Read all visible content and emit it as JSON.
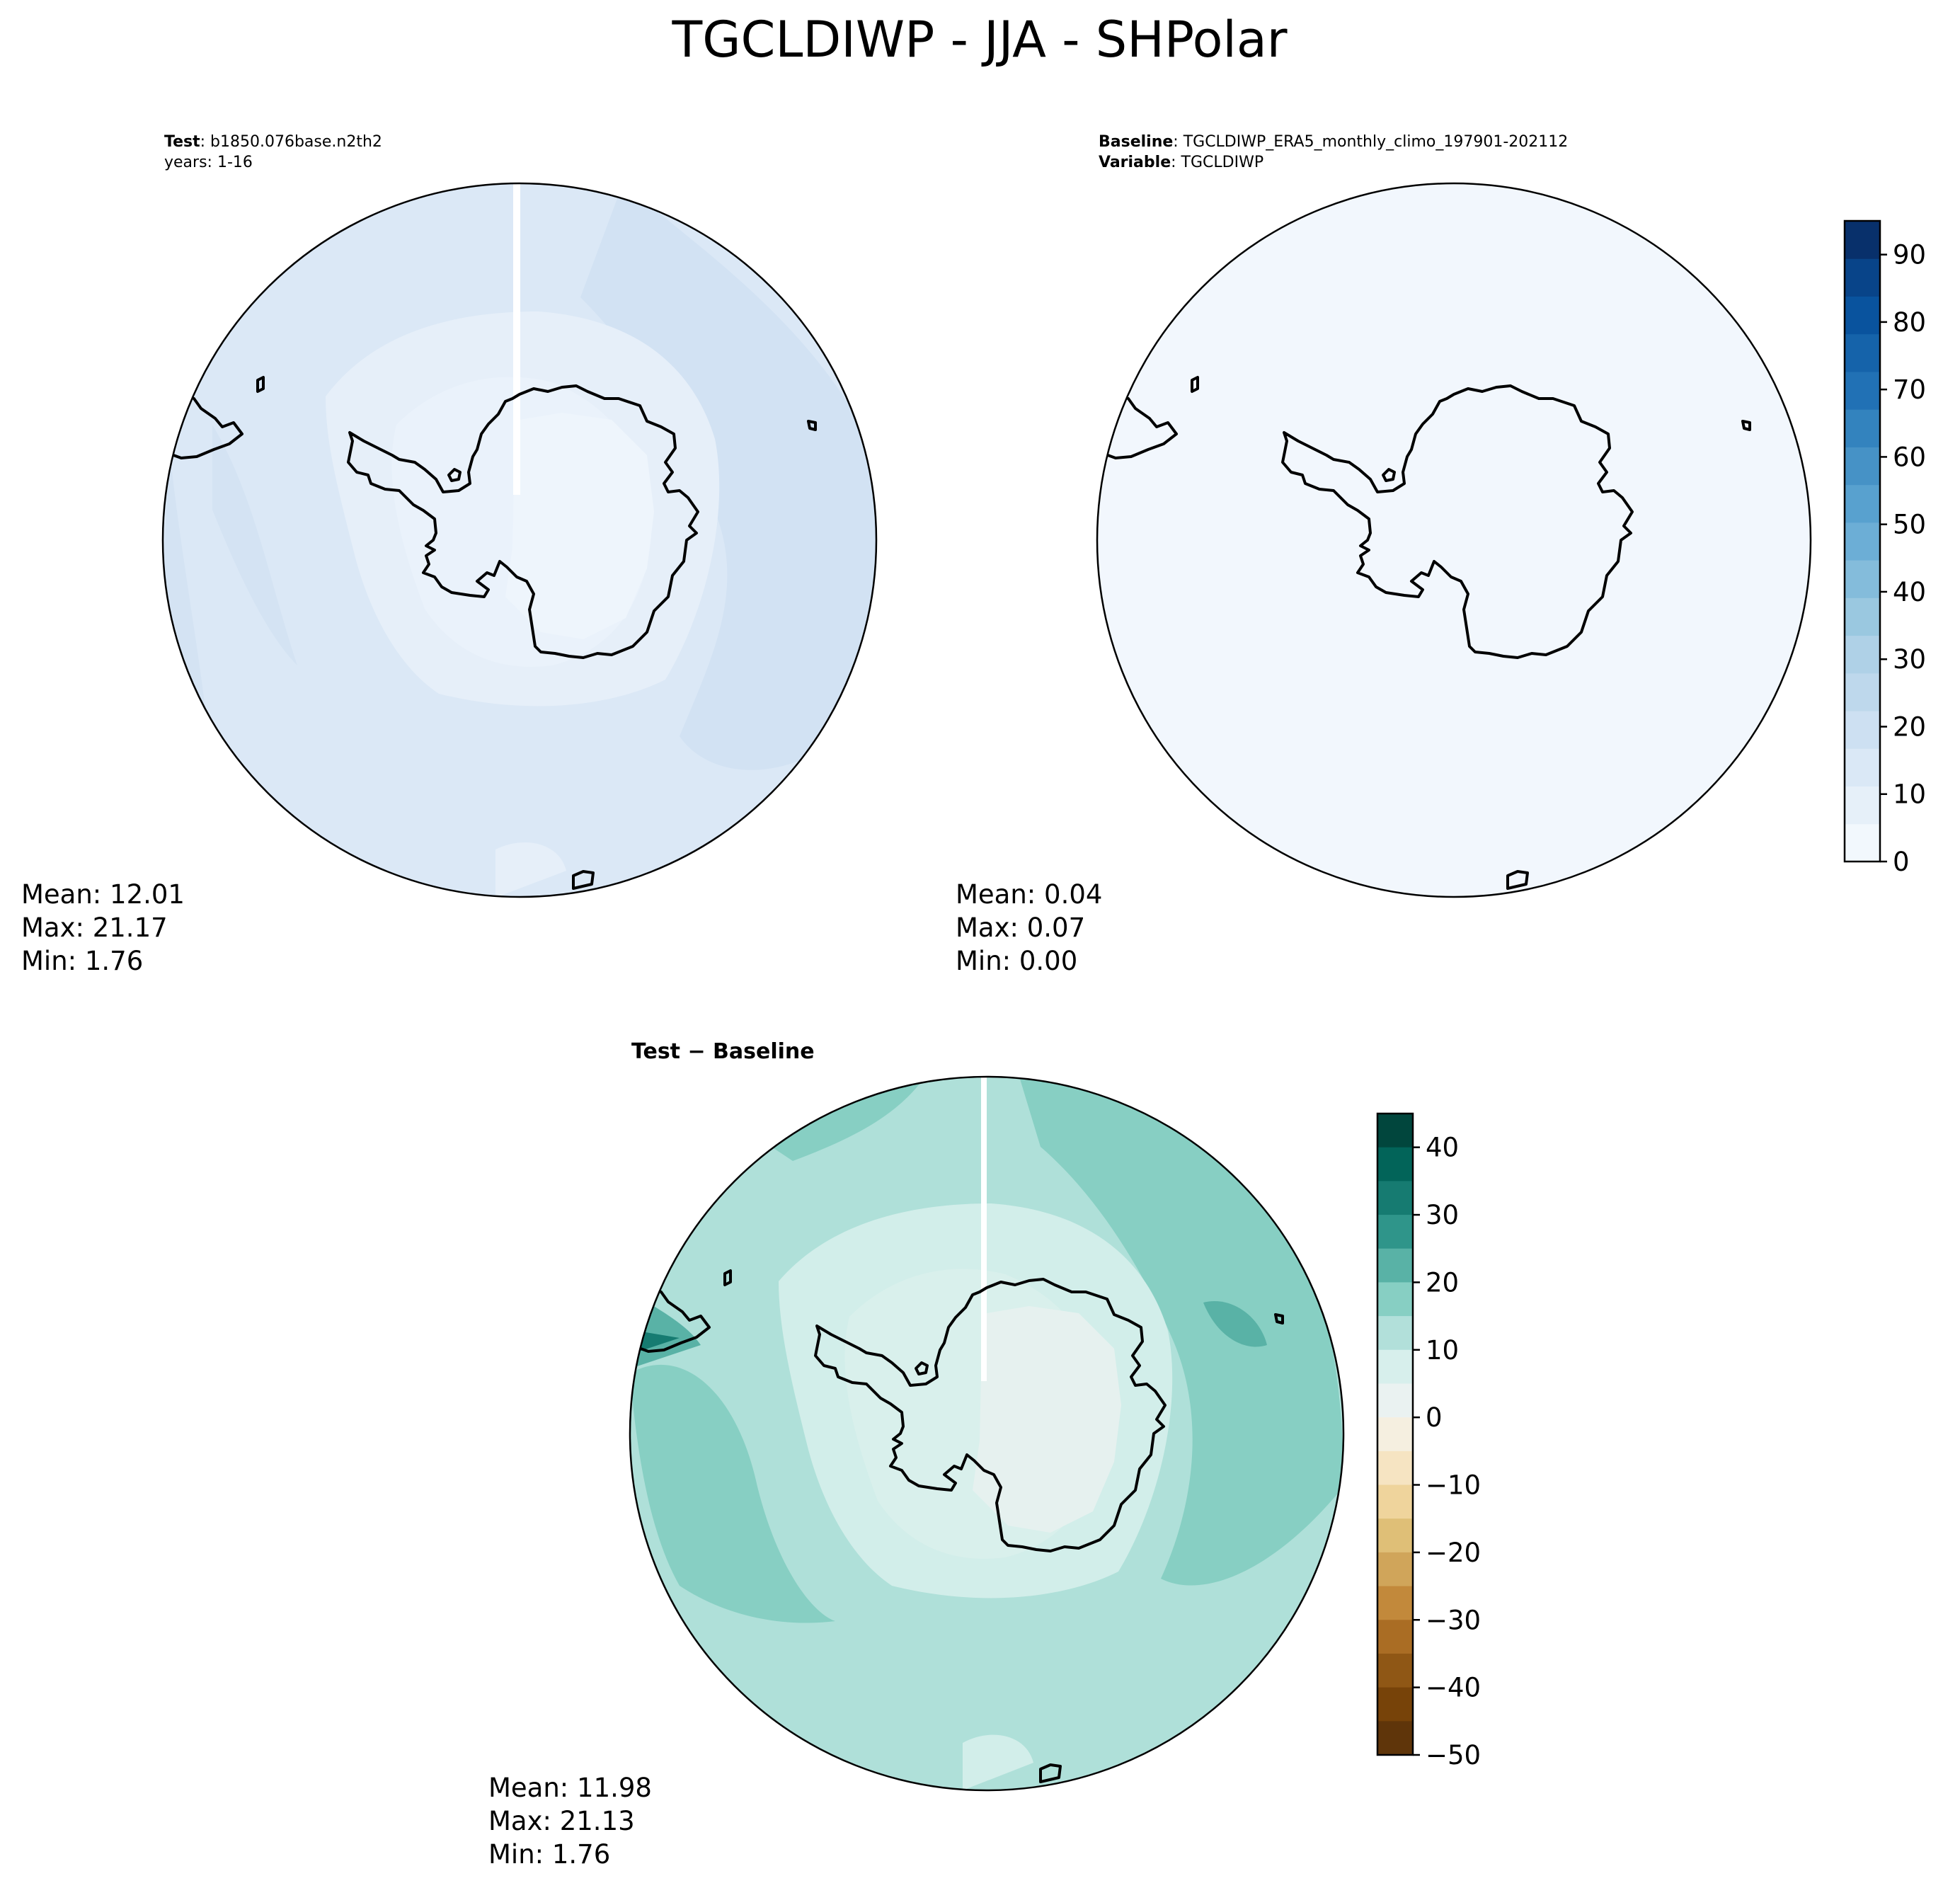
{
  "title": "TGCLDIWP - JJA - SHPolar",
  "panels": {
    "test": {
      "header_bold": "Test",
      "header_rest": ": b1850.076base.n2th2",
      "header_line2": "years: 1-16",
      "stats": {
        "mean": "Mean: 12.01",
        "max": "Max: 21.17",
        "min": "Min:  1.76"
      }
    },
    "baseline": {
      "header_bold": "Baseline",
      "header_rest": ": TGCLDIWP_ERA5_monthly_climo_197901-202112",
      "header_line2_bold": "Variable",
      "header_line2_rest": ": TGCLDIWP",
      "stats": {
        "mean": "Mean:  0.04",
        "max": "Max:  0.07",
        "min": "Min:  0.00"
      }
    },
    "diff": {
      "header": "Test − Baseline",
      "stats": {
        "mean": "Mean: 11.98",
        "max": "Max: 21.13",
        "min": "Min:  1.76"
      }
    }
  },
  "colorbars": {
    "main": {
      "ticks": [
        "0",
        "10",
        "20",
        "30",
        "40",
        "50",
        "60",
        "70",
        "80",
        "90"
      ],
      "colors": [
        "#f2f8fd",
        "#e6f0f9",
        "#dae8f6",
        "#cde0f2",
        "#bed8ec",
        "#afd1e7",
        "#9ac8e0",
        "#84bcdb",
        "#6caed6",
        "#58a1cf",
        "#4692c6",
        "#3383be",
        "#2171b5",
        "#1563aa",
        "#09539e",
        "#084489",
        "#08306b"
      ]
    },
    "diff": {
      "ticks": [
        "40",
        "30",
        "20",
        "10",
        "0",
        "−10",
        "−20",
        "−30",
        "−40",
        "−50"
      ],
      "colors": [
        "#01463d",
        "#026459",
        "#167b71",
        "#2f958a",
        "#59b2a6",
        "#87cfc3",
        "#b2e0da",
        "#d7efec",
        "#eaf2f1",
        "#f5efe0",
        "#f6e4c2",
        "#efd49c",
        "#dfbf77",
        "#d0a55a",
        "#c2893b",
        "#aa6d24",
        "#8f5715",
        "#774309",
        "#5f350a"
      ]
    }
  },
  "chart_data": [
    {
      "type": "heatmap",
      "subtype": "polar-stereographic-map",
      "panel": "test",
      "region": "South Polar",
      "colormap": "Blues",
      "value_range": [
        0,
        95
      ],
      "stats": {
        "mean": 12.01,
        "max": 21.17,
        "min": 1.76
      }
    },
    {
      "type": "heatmap",
      "subtype": "polar-stereographic-map",
      "panel": "baseline",
      "region": "South Polar",
      "colormap": "Blues",
      "value_range": [
        0,
        95
      ],
      "stats": {
        "mean": 0.04,
        "max": 0.07,
        "min": 0.0
      }
    },
    {
      "type": "heatmap",
      "subtype": "polar-stereographic-map",
      "panel": "difference",
      "region": "South Polar",
      "colormap": "BrBG",
      "value_range": [
        -50,
        45
      ],
      "stats": {
        "mean": 11.98,
        "max": 21.13,
        "min": 1.76
      }
    }
  ]
}
